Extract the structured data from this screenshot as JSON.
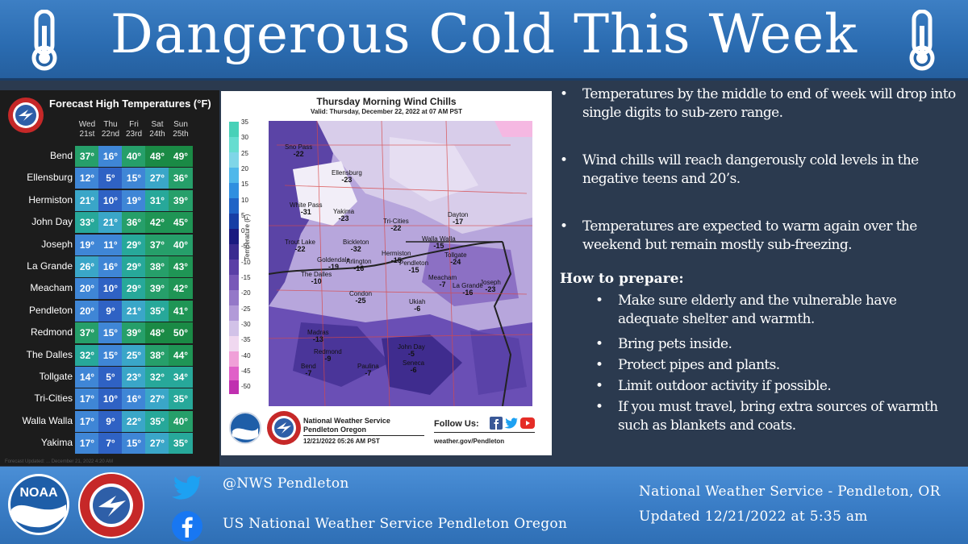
{
  "header": {
    "title": "Dangerous Cold This Week"
  },
  "forecast_table": {
    "title": "Forecast High Temperatures (°F)",
    "days": [
      {
        "dow": "Wed",
        "date": "21st"
      },
      {
        "dow": "Thu",
        "date": "22nd"
      },
      {
        "dow": "Fri",
        "date": "23rd"
      },
      {
        "dow": "Sat",
        "date": "24th"
      },
      {
        "dow": "Sun",
        "date": "25th"
      }
    ],
    "rows": [
      {
        "city": "Bend",
        "temps": [
          "37°",
          "16°",
          "40°",
          "48°",
          "49°"
        ]
      },
      {
        "city": "Ellensburg",
        "temps": [
          "12°",
          "5°",
          "15°",
          "27°",
          "36°"
        ]
      },
      {
        "city": "Hermiston",
        "temps": [
          "21°",
          "10°",
          "19°",
          "31°",
          "39°"
        ]
      },
      {
        "city": "John Day",
        "temps": [
          "33°",
          "21°",
          "36°",
          "42°",
          "45°"
        ]
      },
      {
        "city": "Joseph",
        "temps": [
          "19°",
          "11°",
          "29°",
          "37°",
          "40°"
        ]
      },
      {
        "city": "La Grande",
        "temps": [
          "26°",
          "16°",
          "29°",
          "38°",
          "43°"
        ]
      },
      {
        "city": "Meacham",
        "temps": [
          "20°",
          "10°",
          "29°",
          "39°",
          "42°"
        ]
      },
      {
        "city": "Pendleton",
        "temps": [
          "20°",
          "9°",
          "21°",
          "35°",
          "41°"
        ]
      },
      {
        "city": "Redmond",
        "temps": [
          "37°",
          "15°",
          "39°",
          "48°",
          "50°"
        ]
      },
      {
        "city": "The Dalles",
        "temps": [
          "32°",
          "15°",
          "25°",
          "38°",
          "44°"
        ]
      },
      {
        "city": "Tollgate",
        "temps": [
          "14°",
          "5°",
          "23°",
          "32°",
          "34°"
        ]
      },
      {
        "city": "Tri-Cities",
        "temps": [
          "17°",
          "10°",
          "16°",
          "27°",
          "35°"
        ]
      },
      {
        "city": "Walla Walla",
        "temps": [
          "17°",
          "9°",
          "22°",
          "35°",
          "40°"
        ]
      },
      {
        "city": "Yakima",
        "temps": [
          "17°",
          "7°",
          "15°",
          "27°",
          "35°"
        ]
      }
    ],
    "footnote": "Forecast Updated: ... December 21, 2022 4:20 AM"
  },
  "map": {
    "title": "Thursday Morning Wind Chills",
    "valid": "Valid: Thursday, December 22, 2022 at 07 AM PST",
    "legend_label": "Temperature (F)",
    "legend_ticks": [
      "35",
      "30",
      "25",
      "20",
      "15",
      "10",
      "5",
      "0",
      "-5",
      "-10",
      "-15",
      "-20",
      "-25",
      "-30",
      "-35",
      "-40",
      "-45",
      "-50"
    ],
    "locations": [
      {
        "name": "Sno Pass",
        "value": "-22"
      },
      {
        "name": "Ellensburg",
        "value": "-23"
      },
      {
        "name": "White Pass",
        "value": "-31"
      },
      {
        "name": "Yakima",
        "value": "-23"
      },
      {
        "name": "Tri-Cities",
        "value": "-22"
      },
      {
        "name": "Dayton",
        "value": "-17"
      },
      {
        "name": "Walla Walla",
        "value": "-15"
      },
      {
        "name": "Trout Lake",
        "value": "-22"
      },
      {
        "name": "Bickleton",
        "value": "-32"
      },
      {
        "name": "Goldendale",
        "value": "-19"
      },
      {
        "name": "Hermiston",
        "value": "-15"
      },
      {
        "name": "Tollgate",
        "value": "-24"
      },
      {
        "name": "Arlington",
        "value": "-16"
      },
      {
        "name": "The Dalles",
        "value": "-10"
      },
      {
        "name": "Pendleton",
        "value": "-15"
      },
      {
        "name": "Meacham",
        "value": "-7"
      },
      {
        "name": "La Grande",
        "value": "-16"
      },
      {
        "name": "Joseph",
        "value": "-23"
      },
      {
        "name": "Condon",
        "value": "-25"
      },
      {
        "name": "Ukiah",
        "value": "-6"
      },
      {
        "name": "Madras",
        "value": "-13"
      },
      {
        "name": "John Day",
        "value": "-5"
      },
      {
        "name": "Redmond",
        "value": "-9"
      },
      {
        "name": "Bend",
        "value": "-7"
      },
      {
        "name": "Paulina",
        "value": "-7"
      },
      {
        "name": "Seneca",
        "value": "-6"
      }
    ],
    "footer": {
      "org_line1": "National Weather Service",
      "org_line2": "Pendleton Oregon",
      "issued": "12/21/2022 05:26 AM PST",
      "follow": "Follow Us:",
      "website": "weather.gov/Pendleton"
    }
  },
  "info": {
    "bullets": [
      "Temperatures by the middle to end of week will drop into single digits to sub-zero range.",
      "Wind chills will reach dangerously cold levels in the negative teens and 20’s.",
      "Temperatures are expected to warm again over the weekend but remain mostly sub-freezing."
    ],
    "prepare_title": "How to prepare:",
    "prepare_items": [
      "Make sure elderly and the vulnerable have adequate shelter and warmth.",
      "Bring pets inside.",
      "Protect pipes and plants.",
      "Limit outdoor activity if possible.",
      "If you must travel, bring extra sources of warmth such as blankets and coats."
    ]
  },
  "footer": {
    "twitter": "@NWS Pendleton",
    "facebook": "US National Weather Service Pendleton Oregon",
    "office": "National Weather Service - Pendleton, OR",
    "updated": "Updated 12/21/2022 at 5:35 am"
  },
  "colors": {
    "header_blue": "#2a6bb0",
    "panel_dark": "#2b3a4f",
    "footer_blue": "#3a7dc6",
    "wind_chill_purple": "#6a4fb5"
  }
}
